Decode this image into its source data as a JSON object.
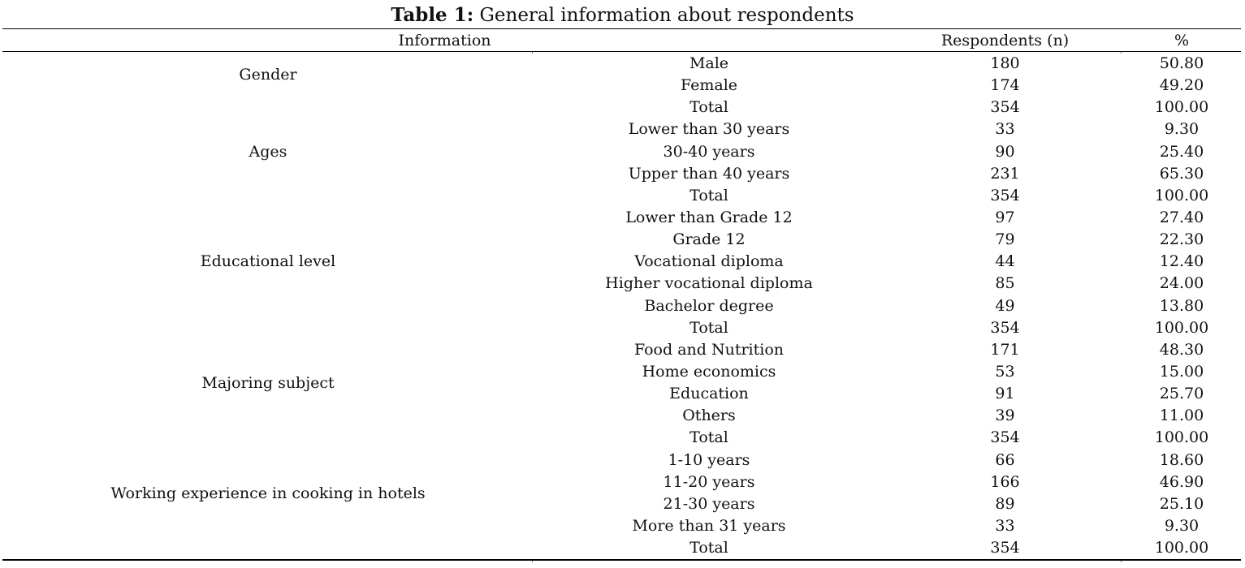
{
  "caption": {
    "label": "Table 1:",
    "text": "General information about respondents"
  },
  "headers": {
    "information": "Information",
    "respondents": "Respondents (n)",
    "percent": "%"
  },
  "groups": [
    {
      "name": "Gender",
      "rows": [
        {
          "sub": "Male",
          "n": "180",
          "pct": "50.80"
        },
        {
          "sub": "Female",
          "n": "174",
          "pct": "49.20"
        },
        {
          "sub": "Total",
          "n": "354",
          "pct": "100.00"
        }
      ]
    },
    {
      "name": "Ages",
      "rows": [
        {
          "sub": "Lower than 30 years",
          "n": "33",
          "pct": "9.30"
        },
        {
          "sub": "30-40 years",
          "n": "90",
          "pct": "25.40"
        },
        {
          "sub": "Upper than 40 years",
          "n": "231",
          "pct": "65.30"
        },
        {
          "sub": "Total",
          "n": "354",
          "pct": "100.00"
        }
      ]
    },
    {
      "name": "Educational level",
      "rows": [
        {
          "sub": "Lower than Grade 12",
          "n": "97",
          "pct": "27.40"
        },
        {
          "sub": "Grade 12",
          "n": "79",
          "pct": "22.30"
        },
        {
          "sub": "Vocational diploma",
          "n": "44",
          "pct": "12.40"
        },
        {
          "sub": "Higher vocational diploma",
          "n": "85",
          "pct": "24.00"
        },
        {
          "sub": "Bachelor degree",
          "n": "49",
          "pct": "13.80"
        },
        {
          "sub": "Total",
          "n": "354",
          "pct": "100.00"
        }
      ]
    },
    {
      "name": "Majoring subject",
      "rows": [
        {
          "sub": "Food and Nutrition",
          "n": "171",
          "pct": "48.30"
        },
        {
          "sub": "Home economics",
          "n": "53",
          "pct": "15.00"
        },
        {
          "sub": "Education",
          "n": "91",
          "pct": "25.70"
        },
        {
          "sub": "Others",
          "n": "39",
          "pct": "11.00"
        },
        {
          "sub": "Total",
          "n": "354",
          "pct": "100.00"
        }
      ]
    },
    {
      "name": "Working experience in cooking in hotels",
      "rows": [
        {
          "sub": "1-10 years",
          "n": "66",
          "pct": "18.60"
        },
        {
          "sub": "11-20 years",
          "n": "166",
          "pct": "46.90"
        },
        {
          "sub": "21-30 years",
          "n": "89",
          "pct": "25.10"
        },
        {
          "sub": "More than 31 years",
          "n": "33",
          "pct": "9.30"
        },
        {
          "sub": "Total",
          "n": "354",
          "pct": "100.00"
        }
      ]
    }
  ]
}
